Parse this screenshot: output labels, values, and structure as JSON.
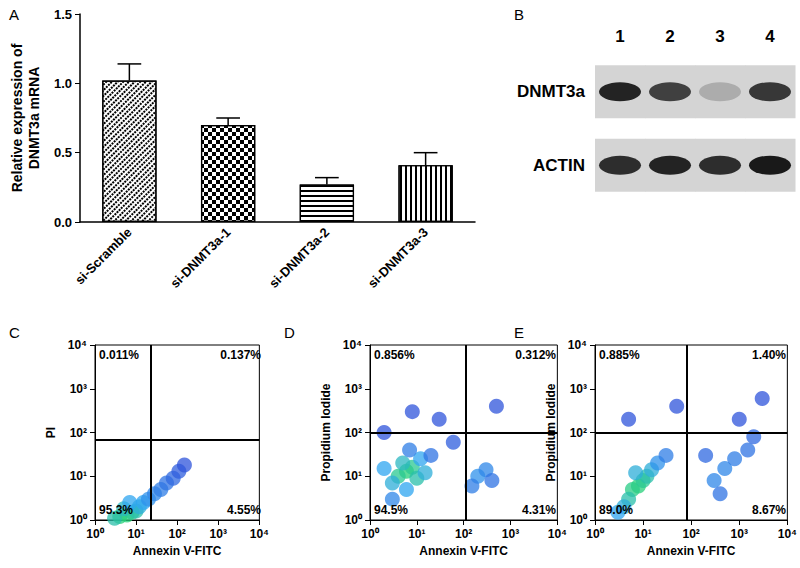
{
  "chart_data": [
    {
      "type": "bar",
      "title": "A",
      "ylabel": "Relative expression of\nDNMT3a mRNA",
      "categories": [
        "si-Scramble",
        "si-DNMT3a-1",
        "si-DNMT3a-2",
        "si-DNMT3a-3"
      ],
      "values": [
        1.02,
        0.7,
        0.27,
        0.41
      ],
      "errors": [
        0.12,
        0.05,
        0.05,
        0.09
      ],
      "color": "#000000",
      "ylim": [
        0,
        1.5
      ],
      "yticks": [
        {
          "value": 0,
          "label": "0.0"
        },
        0.5,
        {
          "value": 1,
          "label": "1.0"
        },
        1.5
      ],
      "grid": false
    },
    {
      "type": "blot",
      "title": "B",
      "lanes": [
        "1",
        "2",
        "3",
        "4"
      ],
      "bands": [
        {
          "name": "DNMT3a",
          "values": [
            0.9,
            0.75,
            0.2,
            0.8
          ]
        },
        {
          "name": "ACTIN",
          "values": [
            0.85,
            0.9,
            0.85,
            0.95
          ]
        }
      ]
    },
    {
      "type": "scatter",
      "title": "C",
      "xlabel": "Annexin V-FITC",
      "ylabel": "PI",
      "log": true,
      "grid": false,
      "xlim": [
        1,
        10000
      ],
      "ylim": [
        1,
        10000
      ],
      "xticks": [
        {
          "value": 1,
          "label": "10⁰"
        },
        {
          "value": 10,
          "label": "10¹"
        },
        {
          "value": 100,
          "label": "10²"
        },
        {
          "value": 1000,
          "label": "10³"
        },
        {
          "value": 10000,
          "label": "10⁴"
        }
      ],
      "yticks": [
        {
          "value": 1,
          "label": "10⁰"
        },
        {
          "value": 10,
          "label": "10¹"
        },
        {
          "value": 100,
          "label": "10²"
        },
        {
          "value": 1000,
          "label": "10³"
        },
        {
          "value": 10000,
          "label": "10⁴"
        }
      ],
      "gate_x": 23,
      "gate_y": 70,
      "quadrant_values": [
        0.011,
        0.137,
        95.3,
        4.55
      ],
      "quadrant_labels": [
        "0.011%",
        "0.137%",
        "95.3%",
        "4.55%"
      ],
      "x": [
        4,
        6,
        8,
        5,
        10,
        12,
        15,
        20,
        28,
        40,
        55,
        80,
        110,
        150,
        3,
        7
      ],
      "y": [
        1.2,
        1.3,
        1.5,
        1.8,
        1.6,
        2,
        2.5,
        3,
        4,
        5,
        7,
        9,
        13,
        18,
        1.1,
        2.5
      ],
      "density": [
        1,
        1,
        0.9,
        0.7,
        0.8,
        0.6,
        0.5,
        0.4,
        0.35,
        0.3,
        0.25,
        0.2,
        0.15,
        0.1,
        0.8,
        0.5
      ],
      "density_range": [
        0,
        1
      ]
    },
    {
      "type": "scatter",
      "title": "D",
      "xlabel": "Annexin V-FITC",
      "ylabel": "Propidium Iodide",
      "log": true,
      "grid": false,
      "xlim": [
        1,
        10000
      ],
      "ylim": [
        1,
        10000
      ],
      "xticks": [
        {
          "value": 1,
          "label": "10⁰"
        },
        {
          "value": 10,
          "label": "10¹"
        },
        {
          "value": 100,
          "label": "10²"
        },
        {
          "value": 1000,
          "label": "10³"
        },
        {
          "value": 10000,
          "label": "10⁴"
        }
      ],
      "yticks": [
        {
          "value": 1,
          "label": "10⁰"
        },
        {
          "value": 10,
          "label": "10¹"
        },
        {
          "value": 100,
          "label": "10²"
        },
        {
          "value": 1000,
          "label": "10³"
        },
        {
          "value": 10000,
          "label": "10⁴"
        }
      ],
      "gate_x": 110,
      "gate_y": 100,
      "quadrant_values": [
        0.856,
        0.312,
        94.5,
        4.31
      ],
      "quadrant_labels": [
        "0.856%",
        "0.312%",
        "94.5%",
        "4.31%"
      ],
      "x": [
        6,
        4,
        8,
        5,
        10,
        3,
        12,
        2,
        15,
        6,
        7,
        20,
        3,
        200,
        300,
        150,
        400,
        30,
        8,
        500,
        60,
        2
      ],
      "y": [
        13,
        10,
        16,
        20,
        9,
        7,
        25,
        15,
        12,
        5,
        40,
        30,
        3,
        10,
        14,
        6,
        8,
        200,
        300,
        400,
        60,
        100
      ],
      "density": [
        1,
        0.9,
        0.9,
        0.7,
        0.8,
        0.6,
        0.5,
        0.5,
        0.6,
        0.5,
        0.3,
        0.25,
        0.35,
        0.4,
        0.35,
        0.3,
        0.25,
        0.1,
        0.1,
        0.1,
        0.15,
        0.1
      ],
      "density_range": [
        0,
        1
      ]
    },
    {
      "type": "scatter",
      "title": "E",
      "xlabel": "Annexin V-FITC",
      "ylabel": "Propidium Iodide",
      "log": true,
      "grid": false,
      "xlim": [
        1,
        10000
      ],
      "ylim": [
        1,
        10000
      ],
      "xticks": [
        {
          "value": 1,
          "label": "10⁰"
        },
        {
          "value": 10,
          "label": "10¹"
        },
        {
          "value": 100,
          "label": "10²"
        },
        {
          "value": 1000,
          "label": "10³"
        },
        {
          "value": 10000,
          "label": "10⁴"
        }
      ],
      "yticks": [
        {
          "value": 1,
          "label": "10⁰"
        },
        {
          "value": 10,
          "label": "10¹"
        },
        {
          "value": 100,
          "label": "10²"
        },
        {
          "value": 1000,
          "label": "10³"
        },
        {
          "value": 10000,
          "label": "10⁴"
        }
      ],
      "gate_x": 80,
      "gate_y": 100,
      "quadrant_values": [
        0.885,
        1.4,
        89.0,
        8.67
      ],
      "quadrant_labels": [
        "0.885%",
        "1.40%",
        "89.0%",
        "8.67%"
      ],
      "x": [
        8,
        6,
        10,
        5,
        12,
        4,
        15,
        7,
        20,
        3,
        30,
        300,
        500,
        800,
        1500,
        2000,
        400,
        200,
        1000,
        50,
        5,
        3000
      ],
      "y": [
        6,
        5,
        8,
        3,
        10,
        2,
        14,
        12,
        20,
        1.5,
        30,
        8,
        15,
        25,
        40,
        80,
        4,
        30,
        200,
        400,
        200,
        600
      ],
      "density": [
        1,
        0.95,
        0.9,
        0.8,
        0.8,
        0.6,
        0.6,
        0.6,
        0.4,
        0.5,
        0.3,
        0.35,
        0.35,
        0.3,
        0.25,
        0.2,
        0.25,
        0.2,
        0.1,
        0.1,
        0.1,
        0.1
      ],
      "density_range": [
        0,
        1
      ]
    }
  ]
}
